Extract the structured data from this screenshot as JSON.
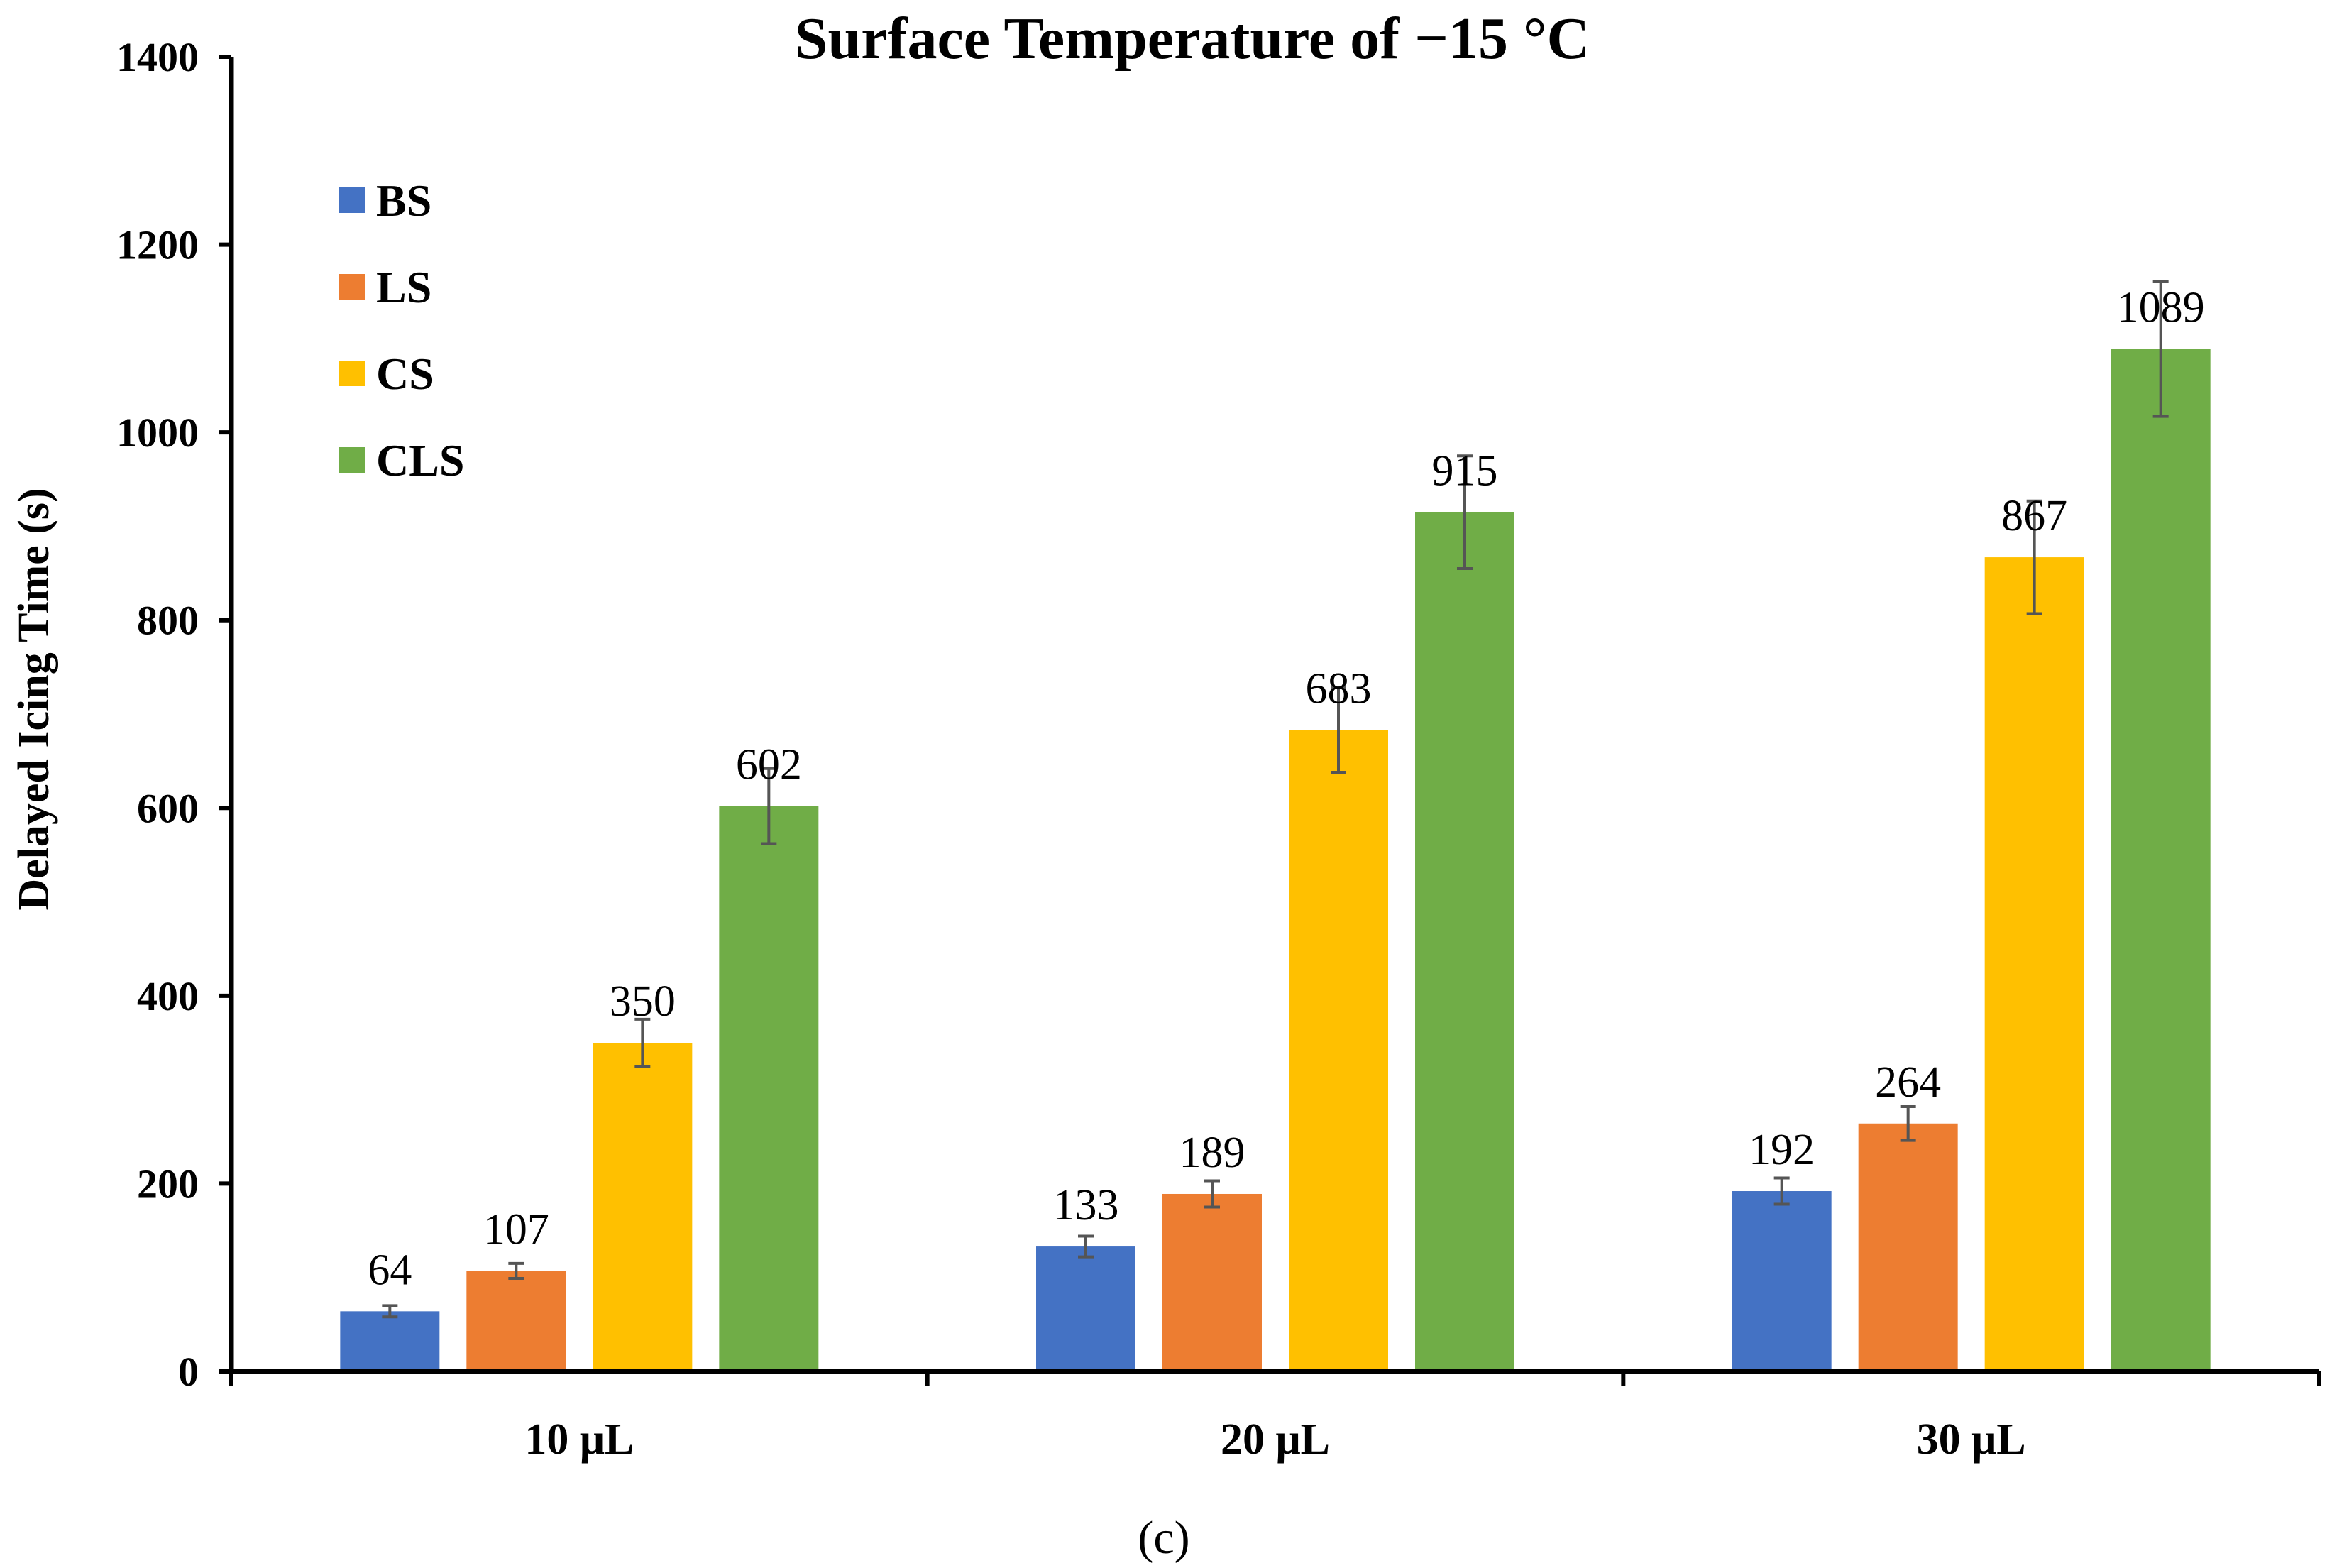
{
  "chart_data": {
    "type": "bar",
    "title": "Surface Temperature of −15 °C",
    "xlabel": "",
    "ylabel": "Delayed Icing Time (s)",
    "ylim": [
      0,
      1400
    ],
    "yticks": [
      0,
      200,
      400,
      600,
      800,
      1000,
      1200,
      1400
    ],
    "ytick_labels": [
      "0",
      "200",
      "400",
      "600",
      "800",
      "1000",
      "1200",
      "1400"
    ],
    "categories": [
      "10 μL",
      "20 μL",
      "30 μL"
    ],
    "series": [
      {
        "name": "BS",
        "color": "#4472C4",
        "values": [
          64,
          133,
          192
        ],
        "errors": [
          6,
          11,
          14
        ],
        "labels": [
          "64",
          "133",
          "192"
        ]
      },
      {
        "name": "LS",
        "color": "#ED7D31",
        "values": [
          107,
          189,
          264
        ],
        "errors": [
          8,
          14,
          18
        ],
        "labels": [
          "107",
          "189",
          "264"
        ]
      },
      {
        "name": "CS",
        "color": "#FFC000",
        "values": [
          350,
          683,
          867
        ],
        "errors": [
          25,
          45,
          60
        ],
        "labels": [
          "350",
          "683",
          "867"
        ]
      },
      {
        "name": "CLS",
        "color": "#70AD47",
        "values": [
          602,
          915,
          1089
        ],
        "errors": [
          40,
          60,
          72
        ],
        "labels": [
          "602",
          "915",
          "1089"
        ]
      }
    ],
    "legend": "top-left",
    "grid": false
  },
  "caption": "(c)"
}
